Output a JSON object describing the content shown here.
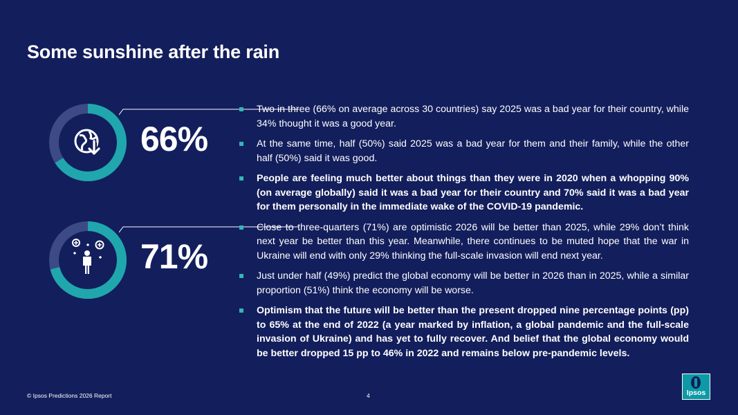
{
  "page": {
    "title": "Some sunshine after the rain"
  },
  "stats": [
    {
      "value_text": "66%",
      "value": 66,
      "icon": "globe-down-arrow-icon"
    },
    {
      "value_text": "71%",
      "value": 71,
      "icon": "person-ideas-icon"
    }
  ],
  "bullets": [
    {
      "text": "Two in three (66% on average across 30 countries) say 2025 was a bad year for their country, while 34% thought it was a good year.",
      "bold": false
    },
    {
      "text": "At the same time, half (50%) said 2025 was a bad year for them and their family, while the other half (50%) said it was good.",
      "bold": false
    },
    {
      "text": "People are feeling much better about things than they were in 2020 when a whopping 90% (on average globally) said it was a bad year for their country and 70% said it was a bad year for them personally in the immediate wake of the COVID-19 pandemic.",
      "bold": true
    },
    {
      "text": "Close to three-quarters (71%) are optimistic 2026 will be better than 2025, while 29% don’t think next year be better than this year. Meanwhile, there continues to be muted hope that the war in Ukraine will end with only 29% thinking the full-scale invasion will end next year.",
      "bold": false
    },
    {
      "text": "Just under half (49%) predict the global economy will be better in 2026 than in 2025, while a similar proportion (51%) think the economy will be worse.",
      "bold": false
    },
    {
      "text": "Optimism that the future will be better than the present dropped nine percentage points (pp) to 65% at the end of 2022 (a year marked by inflation, a global pandemic and the full-scale invasion of Ukraine) and has yet to fully recover. And belief that the global economy would be better dropped 15 pp to 46% in 2022 and remains below pre-pandemic levels.",
      "bold": true
    }
  ],
  "footer": {
    "copyright": "© Ipsos Predictions 2026 Report",
    "page_number": "4"
  },
  "logo": {
    "text": "Ipsos"
  },
  "colors": {
    "background": "#131e5c",
    "ring_fill": "#1fa7ad",
    "ring_track": "#3c4a86",
    "bullet": "#35b5b5"
  }
}
